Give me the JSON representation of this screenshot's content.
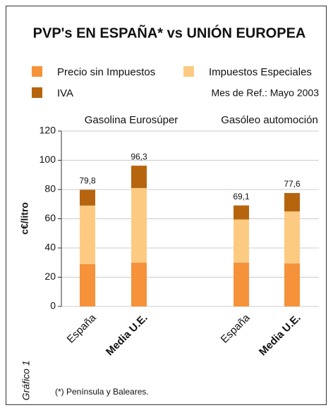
{
  "chart_data": {
    "type": "stacked_bar",
    "title": "PVP's EN ESPAÑA* vs UNIÓN EUROPEA",
    "subtitle": "Mes de Ref.: Mayo 2003",
    "groups": [
      "Gasolina Eurosúper",
      "Gasóleo automoción"
    ],
    "categories": [
      "España",
      "Media U.E.",
      "España",
      "Media U.E."
    ],
    "series": [
      {
        "name": "Precio sin Impuestos",
        "color": "#f5923a",
        "values": [
          29,
          30,
          30,
          29.5
        ]
      },
      {
        "name": "Impuestos Especiales",
        "color": "#fdca82",
        "values": [
          40,
          51,
          29.5,
          35.5
        ]
      },
      {
        "name": "IVA",
        "color": "#b6650e",
        "values": [
          10.8,
          15.3,
          9.6,
          12.6
        ]
      }
    ],
    "totals": [
      79.8,
      96.3,
      69.1,
      77.6
    ],
    "total_labels": [
      "79,8",
      "96,3",
      "69,1",
      "77,6"
    ],
    "y_label": "c€/litro",
    "ylim": [
      0,
      120
    ],
    "yticks": [
      0,
      20,
      40,
      60,
      80,
      100,
      120
    ],
    "grid": true,
    "side_note": "Gráfico 1",
    "footnote": "(*) Península y Baleares."
  }
}
